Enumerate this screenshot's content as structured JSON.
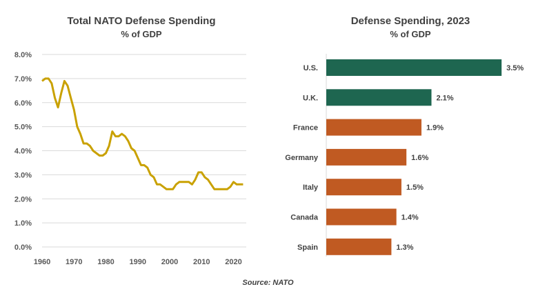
{
  "chart_data": [
    {
      "type": "line",
      "title": "Total NATO Defense Spending",
      "subtitle": "% of GDP",
      "xlabel": "",
      "ylabel": "",
      "xlim": [
        1960,
        2024
      ],
      "ylim": [
        0,
        8
      ],
      "x_ticks": [
        "1960",
        "1970",
        "1980",
        "1990",
        "2000",
        "2010",
        "2020"
      ],
      "y_ticks": [
        "0.0%",
        "1.0%",
        "2.0%",
        "3.0%",
        "4.0%",
        "5.0%",
        "6.0%",
        "7.0%",
        "8.0%"
      ],
      "grid": true,
      "color": "#C9A100",
      "x": [
        1960,
        1961,
        1962,
        1963,
        1964,
        1965,
        1966,
        1967,
        1968,
        1969,
        1970,
        1971,
        1972,
        1973,
        1974,
        1975,
        1976,
        1977,
        1978,
        1979,
        1980,
        1981,
        1982,
        1983,
        1984,
        1985,
        1986,
        1987,
        1988,
        1989,
        1990,
        1991,
        1992,
        1993,
        1994,
        1995,
        1996,
        1997,
        1998,
        1999,
        2000,
        2001,
        2002,
        2003,
        2004,
        2005,
        2006,
        2007,
        2008,
        2009,
        2010,
        2011,
        2012,
        2013,
        2014,
        2015,
        2016,
        2017,
        2018,
        2019,
        2020,
        2021,
        2022,
        2023
      ],
      "y": [
        6.9,
        7.0,
        7.0,
        6.8,
        6.2,
        5.8,
        6.4,
        6.9,
        6.7,
        6.2,
        5.7,
        5.0,
        4.7,
        4.3,
        4.3,
        4.2,
        4.0,
        3.9,
        3.8,
        3.8,
        3.9,
        4.2,
        4.8,
        4.6,
        4.6,
        4.7,
        4.6,
        4.4,
        4.1,
        4.0,
        3.7,
        3.4,
        3.4,
        3.3,
        3.0,
        2.9,
        2.6,
        2.6,
        2.5,
        2.4,
        2.4,
        2.4,
        2.6,
        2.7,
        2.7,
        2.7,
        2.7,
        2.6,
        2.8,
        3.1,
        3.1,
        2.9,
        2.8,
        2.6,
        2.4,
        2.4,
        2.4,
        2.4,
        2.4,
        2.5,
        2.7,
        2.6,
        2.6,
        2.6
      ]
    },
    {
      "type": "bar",
      "orientation": "horizontal",
      "title": "Defense Spending, 2023",
      "subtitle": "% of GDP",
      "categories": [
        "U.S.",
        "U.K.",
        "France",
        "Germany",
        "Italy",
        "Canada",
        "Spain"
      ],
      "values": [
        3.5,
        2.1,
        1.9,
        1.6,
        1.5,
        1.4,
        1.3
      ],
      "labels": [
        "3.5%",
        "2.1%",
        "1.9%",
        "1.6%",
        "1.5%",
        "1.4%",
        "1.3%"
      ],
      "colors": [
        "#1E6650",
        "#1E6650",
        "#C05A22",
        "#C05A22",
        "#C05A22",
        "#C05A22",
        "#C05A22"
      ],
      "grid": false
    }
  ],
  "source": "Source: NATO"
}
